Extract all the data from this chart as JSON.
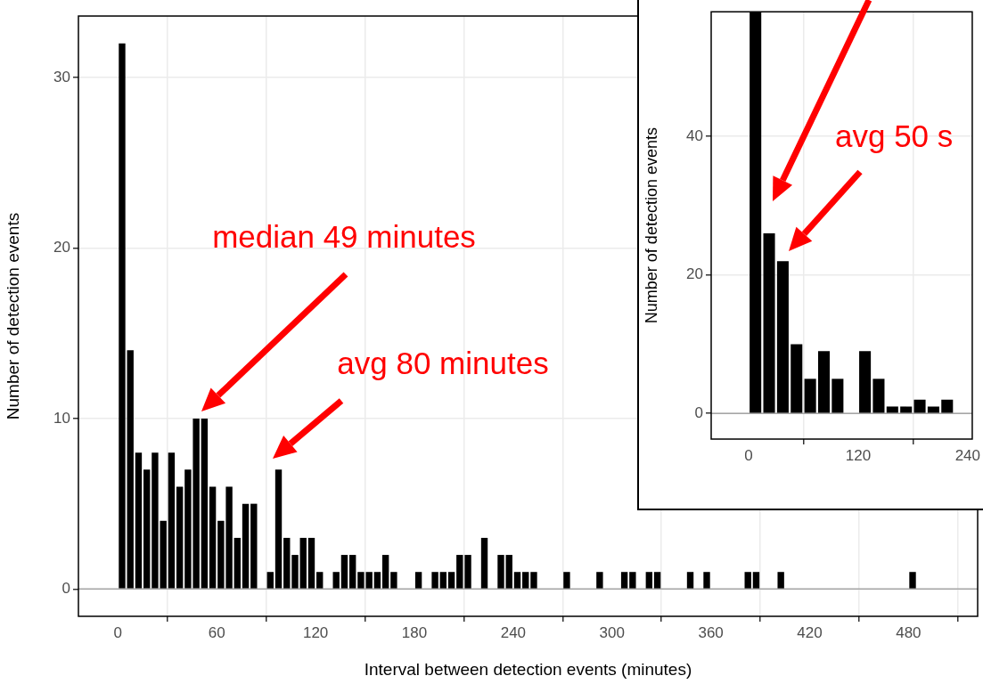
{
  "chart_data": [
    {
      "type": "histogram",
      "xlabel": "Interval between detection events (minutes)",
      "ylabel": "Number of detection events",
      "bins": [
        0,
        5,
        10,
        15,
        20,
        25,
        30,
        35,
        40,
        45,
        50,
        55,
        60,
        65,
        70,
        75,
        80,
        85,
        90,
        95,
        100,
        105,
        110,
        115,
        120,
        125,
        130,
        135,
        140,
        145,
        150,
        155,
        160,
        165,
        170,
        175,
        180,
        185,
        190,
        195,
        200,
        205,
        210,
        215,
        220,
        225,
        230,
        235,
        240,
        245,
        250,
        255,
        260,
        265,
        270,
        275,
        280,
        285,
        290,
        295,
        300,
        305,
        310,
        315,
        320,
        325,
        330,
        335,
        340,
        345,
        350,
        355,
        360,
        365,
        370,
        375,
        380,
        385,
        390,
        395,
        400,
        405,
        410,
        415,
        420,
        425,
        430,
        435,
        440,
        445,
        450,
        455,
        460,
        465,
        470,
        475,
        480,
        485
      ],
      "values": [
        32,
        14,
        8,
        7,
        8,
        4,
        8,
        6,
        7,
        10,
        10,
        6,
        4,
        6,
        3,
        5,
        5,
        0,
        1,
        7,
        3,
        2,
        3,
        3,
        1,
        0,
        1,
        2,
        2,
        1,
        1,
        1,
        2,
        1,
        0,
        0,
        1,
        0,
        1,
        1,
        1,
        2,
        2,
        0,
        3,
        0,
        2,
        2,
        1,
        1,
        1,
        0,
        0,
        0,
        1,
        0,
        0,
        0,
        1,
        0,
        0,
        1,
        1,
        0,
        1,
        1,
        0,
        0,
        0,
        1,
        0,
        1,
        0,
        0,
        0,
        0,
        1,
        1,
        0,
        0,
        1,
        0,
        0,
        0,
        0,
        0,
        0,
        0,
        0,
        0,
        0,
        0,
        0,
        0,
        0,
        0,
        1
      ],
      "color": "#000000",
      "xlim": [
        -24,
        522
      ],
      "xticks": [
        0,
        60,
        120,
        180,
        240,
        300,
        360,
        420,
        480
      ],
      "ylim": [
        -1.6,
        33.6
      ],
      "yticks": [
        0,
        10,
        20,
        30
      ],
      "grid": true,
      "ref_lines": [
        {
          "axis": "y",
          "value": 0,
          "color": "#a6a6a6"
        }
      ],
      "annotations": [
        "median 49 minutes",
        "avg 80 minutes"
      ]
    },
    {
      "type": "histogram",
      "ylabel": "Number of detection events",
      "bins": [
        0,
        15,
        30,
        45,
        60,
        75,
        90,
        105,
        120,
        135,
        150,
        165,
        180,
        195,
        210,
        225,
        240
      ],
      "values": [
        58,
        26,
        22,
        10,
        5,
        9,
        5,
        0,
        9,
        5,
        1,
        1,
        2,
        1,
        2,
        0
      ],
      "color": "#000000",
      "xlim": [
        -41,
        245
      ],
      "xticks": [
        0,
        120,
        240
      ],
      "ylim": [
        -3.7,
        58
      ],
      "yticks": [
        0,
        20,
        40
      ],
      "grid": true,
      "ref_lines": [
        {
          "axis": "y",
          "value": 0,
          "color": "#a6a6a6"
        }
      ],
      "annotations": [
        "avg 50 s"
      ]
    }
  ]
}
